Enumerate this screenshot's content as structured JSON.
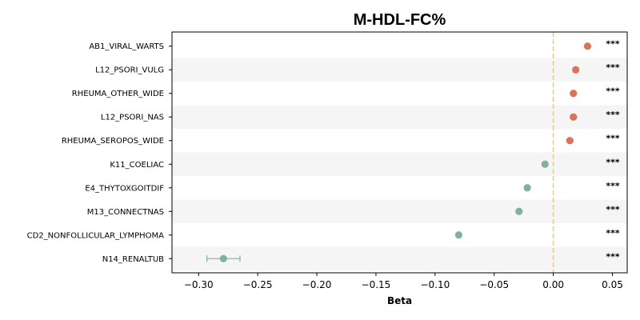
{
  "chart_data": {
    "type": "scatter",
    "title": "M-HDL-FC%",
    "xlabel": "Beta",
    "xlim": [
      -0.3225,
      0.0625
    ],
    "xticks": [
      -0.3,
      -0.25,
      -0.2,
      -0.15,
      -0.1,
      -0.05,
      0.0,
      0.05
    ],
    "xtick_labels": [
      "−0.30",
      "−0.25",
      "−0.20",
      "−0.15",
      "−0.10",
      "−0.05",
      "0.00",
      "0.05"
    ],
    "reference_line": 0.0,
    "categories": [
      "AB1_VIRAL_WARTS",
      "L12_PSORI_VULG",
      "RHEUMA_OTHER_WIDE",
      "L12_PSORI_NAS",
      "RHEUMA_SEROPOS_WIDE",
      "K11_COELIAC",
      "E4_THYTOXGOITDIF",
      "M13_CONNECTNAS",
      "CD2_NONFOLLICULAR_LYMPHOMA",
      "N14_RENALTUB"
    ],
    "values": [
      0.029,
      0.019,
      0.017,
      0.017,
      0.014,
      -0.007,
      -0.022,
      -0.029,
      -0.08,
      -0.279
    ],
    "ci_lower": [
      0.029,
      0.019,
      0.017,
      0.017,
      0.014,
      -0.007,
      -0.022,
      -0.029,
      -0.08,
      -0.293
    ],
    "ci_upper": [
      0.029,
      0.019,
      0.017,
      0.017,
      0.014,
      -0.007,
      -0.022,
      -0.029,
      -0.08,
      -0.265
    ],
    "significance": [
      "***",
      "***",
      "***",
      "***",
      "***",
      "***",
      "***",
      "***",
      "***",
      "***"
    ],
    "colors": {
      "positive": "#d9735a",
      "negative": "#80b29a",
      "reference_line": "#f2c97f",
      "band": "#f5f5f5"
    },
    "grid": false,
    "legend": "none"
  }
}
